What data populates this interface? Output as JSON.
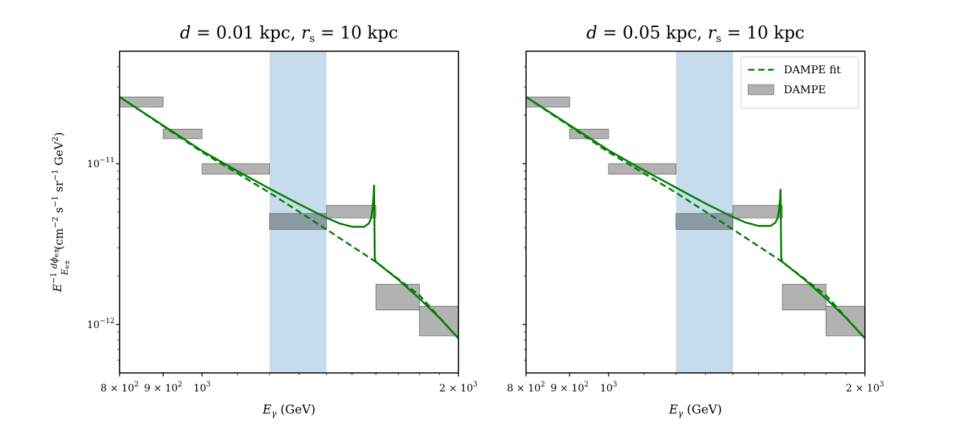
{
  "figure": {
    "ylabel": "E^{-1} dφ_{e±}/E_{e±} (cm^{-2} s^{-1} sr^{-1} GeV^2)",
    "ylabel_parts": {
      "e": "E",
      "e_exp": "−1",
      "frac_num": "dϕ",
      "frac_num_sub": "e±",
      "frac_den": "E",
      "frac_den_sub": "e±",
      "units_open": "(cm",
      "units_cm_exp": "−2",
      "units_s": " s",
      "units_s_exp": "−1",
      "units_sr": " sr",
      "units_sr_exp": "−1",
      "units_gev": " GeV",
      "units_gev_exp": "2",
      "units_close": ")"
    }
  },
  "chart_data": [
    {
      "type": "line",
      "title": "d = 0.01 kpc, r_s = 10 kpc",
      "title_parts": {
        "d": "d",
        "eq1": " = 0.01 kpc, ",
        "r": "r",
        "r_sub": "s",
        "eq2": " = 10 kpc"
      },
      "xlabel": "E_γ (GeV)",
      "xlabel_parts": {
        "e": "E",
        "sub": "γ",
        "units": " (GeV)"
      },
      "xscale": "log",
      "yscale": "log",
      "xlim": [
        800,
        2000
      ],
      "ylim": [
        5e-13,
        5e-11
      ],
      "x_ticks": [
        {
          "value": 800,
          "mant": "8 × 10",
          "exp": "2"
        },
        {
          "value": 900,
          "mant": "9 × 10",
          "exp": "2"
        },
        {
          "value": 1000,
          "mant": "10",
          "exp": "3"
        },
        {
          "value": 2000,
          "mant": "2 × 10",
          "exp": "3"
        }
      ],
      "y_ticks": [
        {
          "value": 1e-12,
          "mant": "10",
          "exp": "−12"
        },
        {
          "value": 1e-11,
          "mant": "10",
          "exp": "−11"
        }
      ],
      "grid": false,
      "shaded_band": {
        "x": [
          1200,
          1400
        ],
        "color": "#c6dcec"
      },
      "series": [
        {
          "name": "DAMPE fit",
          "style": "dashed",
          "color": "#007f00",
          "x": [
            800,
            1000,
            1200,
            1400,
            1600,
            1800,
            2000
          ],
          "y": [
            2.6e-11,
            1.18e-11,
            6.6e-12,
            3.9e-12,
            2.45e-12,
            1.52e-12,
            8.2e-13
          ]
        },
        {
          "name": "",
          "style": "solid",
          "color": "#007f00",
          "x": [
            800,
            1000,
            1100,
            1200,
            1300,
            1400,
            1450,
            1500,
            1550,
            1570,
            1580,
            1585,
            1590,
            1592,
            1595,
            1600,
            1700,
            1800,
            1900,
            2000
          ],
          "y": [
            2.6e-11,
            1.2e-11,
            9e-12,
            7e-12,
            5.6e-12,
            4.6e-12,
            4.25e-12,
            4.05e-12,
            4.05e-12,
            4.25e-12,
            4.6e-12,
            5.2e-12,
            6.3e-12,
            7.3e-12,
            2.6e-12,
            2.45e-12,
            1.9e-12,
            1.45e-12,
            1.1e-12,
            8.2e-13
          ]
        }
      ],
      "bins": [
        {
          "x": [
            800,
            900
          ],
          "y": [
            2.25e-11,
            2.6e-11
          ],
          "highlight": false
        },
        {
          "x": [
            900,
            1000
          ],
          "y": [
            1.43e-11,
            1.64e-11
          ],
          "highlight": false
        },
        {
          "x": [
            1000,
            1200
          ],
          "y": [
            8.6e-12,
            1e-11
          ],
          "highlight": false
        },
        {
          "x": [
            1200,
            1400
          ],
          "y": [
            3.9e-12,
            4.9e-12
          ],
          "highlight": true
        },
        {
          "x": [
            1400,
            1600
          ],
          "y": [
            4.6e-12,
            5.5e-12
          ],
          "highlight": false
        },
        {
          "x": [
            1600,
            1800
          ],
          "y": [
            1.23e-12,
            1.78e-12
          ],
          "highlight": false
        },
        {
          "x": [
            1800,
            2000
          ],
          "y": [
            8.5e-13,
            1.3e-12
          ],
          "highlight": false
        }
      ],
      "bin_color": "#b2b2b2",
      "legend": null
    },
    {
      "type": "line",
      "title": "d = 0.05 kpc, r_s = 10 kpc",
      "title_parts": {
        "d": "d",
        "eq1": " = 0.05 kpc, ",
        "r": "r",
        "r_sub": "s",
        "eq2": " = 10 kpc"
      },
      "xlabel": "E_γ (GeV)",
      "xlabel_parts": {
        "e": "E",
        "sub": "γ",
        "units": " (GeV)"
      },
      "xscale": "log",
      "yscale": "log",
      "xlim": [
        800,
        2000
      ],
      "ylim": [
        5e-13,
        5e-11
      ],
      "x_ticks": [
        {
          "value": 800,
          "mant": "8 × 10",
          "exp": "2"
        },
        {
          "value": 900,
          "mant": "9 × 10",
          "exp": "2"
        },
        {
          "value": 1000,
          "mant": "10",
          "exp": "3"
        },
        {
          "value": 2000,
          "mant": "2 × 10",
          "exp": "3"
        }
      ],
      "y_ticks": [
        {
          "value": 1e-12,
          "mant": "",
          "exp": ""
        },
        {
          "value": 1e-11,
          "mant": "",
          "exp": ""
        }
      ],
      "grid": false,
      "shaded_band": {
        "x": [
          1200,
          1400
        ],
        "color": "#c6dcec"
      },
      "series": [
        {
          "name": "DAMPE fit",
          "style": "dashed",
          "color": "#007f00",
          "x": [
            800,
            1000,
            1200,
            1400,
            1600,
            1800,
            2000
          ],
          "y": [
            2.6e-11,
            1.18e-11,
            6.6e-12,
            3.9e-12,
            2.45e-12,
            1.52e-12,
            8.2e-13
          ]
        },
        {
          "name": "",
          "style": "solid",
          "color": "#007f00",
          "x": [
            800,
            1000,
            1100,
            1200,
            1300,
            1400,
            1450,
            1500,
            1550,
            1570,
            1580,
            1585,
            1590,
            1592,
            1595,
            1600,
            1700,
            1800,
            1900,
            2000
          ],
          "y": [
            2.6e-11,
            1.21e-11,
            9.1e-12,
            7.1e-12,
            5.65e-12,
            4.65e-12,
            4.3e-12,
            4.1e-12,
            4.1e-12,
            4.3e-12,
            4.6e-12,
            5.1e-12,
            6e-12,
            6.9e-12,
            2.6e-12,
            2.45e-12,
            1.9e-12,
            1.45e-12,
            1.1e-12,
            8.2e-13
          ]
        }
      ],
      "bins": [
        {
          "x": [
            800,
            900
          ],
          "y": [
            2.25e-11,
            2.6e-11
          ],
          "highlight": false
        },
        {
          "x": [
            900,
            1000
          ],
          "y": [
            1.43e-11,
            1.64e-11
          ],
          "highlight": false
        },
        {
          "x": [
            1000,
            1200
          ],
          "y": [
            8.6e-12,
            1e-11
          ],
          "highlight": false
        },
        {
          "x": [
            1200,
            1400
          ],
          "y": [
            3.9e-12,
            4.9e-12
          ],
          "highlight": true
        },
        {
          "x": [
            1400,
            1600
          ],
          "y": [
            4.6e-12,
            5.5e-12
          ],
          "highlight": false
        },
        {
          "x": [
            1600,
            1800
          ],
          "y": [
            1.23e-12,
            1.78e-12
          ],
          "highlight": false
        },
        {
          "x": [
            1800,
            2000
          ],
          "y": [
            8.5e-13,
            1.3e-12
          ],
          "highlight": false
        }
      ],
      "bin_color": "#b2b2b2",
      "legend": {
        "placement": "top-right",
        "entries": [
          {
            "label": "DAMPE fit",
            "kind": "dashed-line",
            "color": "#007f00"
          },
          {
            "label": "DAMPE",
            "kind": "patch",
            "color": "#b2b2b2"
          }
        ]
      }
    }
  ]
}
